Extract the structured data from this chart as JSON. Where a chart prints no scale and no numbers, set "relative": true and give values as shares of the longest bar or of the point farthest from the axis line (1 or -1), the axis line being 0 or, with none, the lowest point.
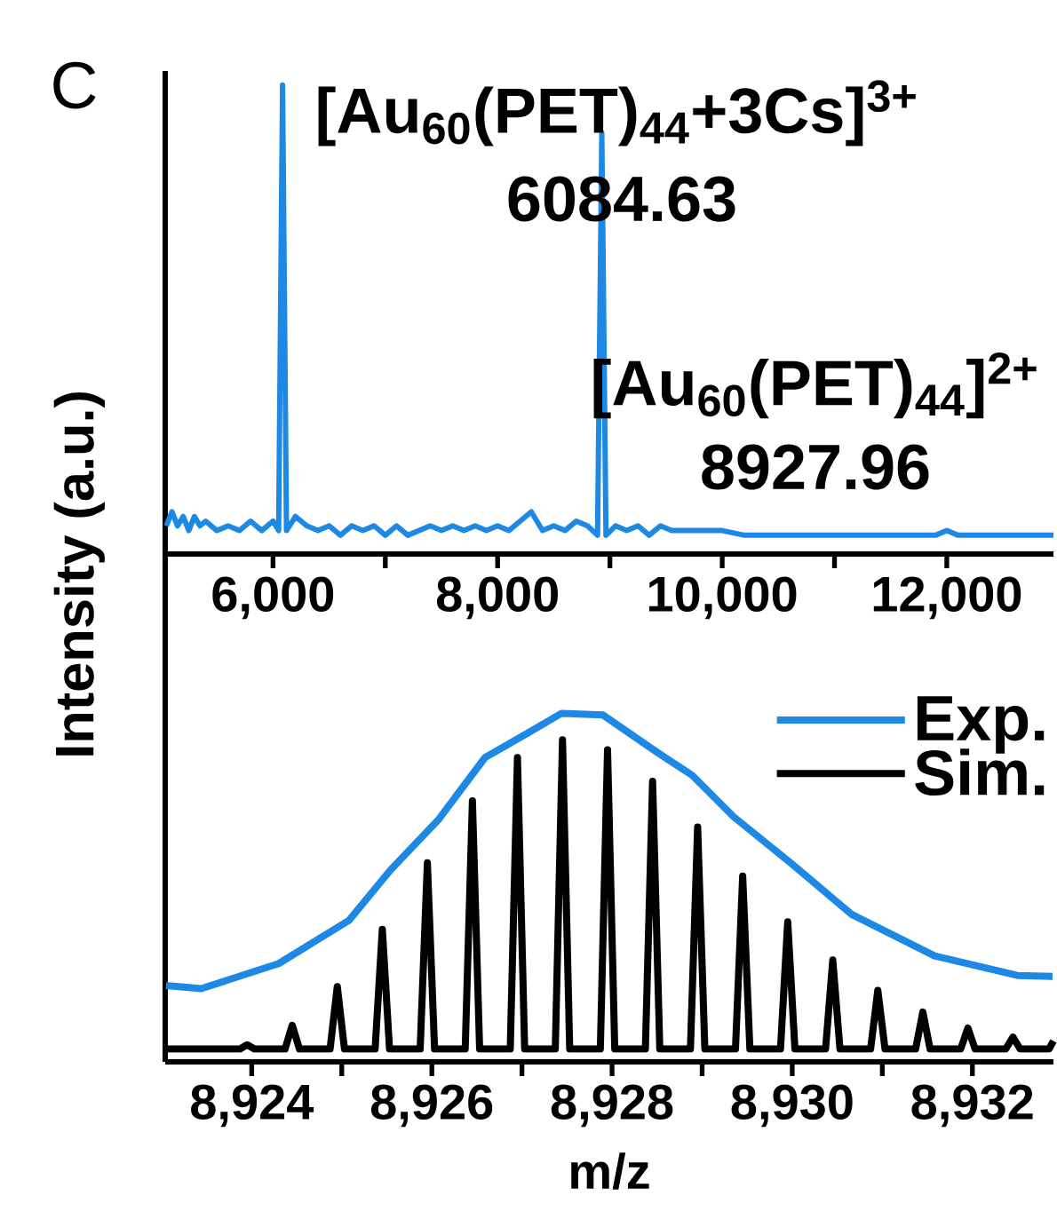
{
  "chart_data": [
    {
      "type": "line",
      "relative": true,
      "xlim": [
        5040,
        12950
      ],
      "xticks": [
        {
          "value": 6000,
          "label": "6,000"
        },
        {
          "value": 7000,
          "label": null
        },
        {
          "value": 8000,
          "label": "8,000"
        },
        {
          "value": 9000,
          "label": null
        },
        {
          "value": 10000,
          "label": "10,000"
        },
        {
          "value": 11000,
          "label": null
        },
        {
          "value": 12000,
          "label": "12,000"
        }
      ],
      "series": [
        {
          "color": "#1e88e5",
          "x": [
            5050,
            5100,
            5150,
            5200,
            5250,
            5300,
            5350,
            5400,
            5500,
            5600,
            5700,
            5800,
            5900,
            6000,
            6050,
            6085,
            6120,
            6200,
            6300,
            6400,
            6500,
            6600,
            6700,
            6800,
            6900,
            7000,
            7100,
            7200,
            7300,
            7400,
            7500,
            7600,
            7700,
            7800,
            7900,
            8000,
            8100,
            8200,
            8300,
            8400,
            8500,
            8600,
            8700,
            8800,
            8890,
            8928,
            8965,
            9050,
            9150,
            9250,
            9350,
            9450,
            9550,
            9700,
            9900,
            10000,
            10200,
            10500,
            11000,
            11500,
            11900,
            12000,
            12100,
            12500,
            12950
          ],
          "values": [
            0.06,
            0.09,
            0.06,
            0.08,
            0.05,
            0.08,
            0.06,
            0.07,
            0.05,
            0.06,
            0.05,
            0.07,
            0.05,
            0.07,
            0.05,
            1.0,
            0.05,
            0.08,
            0.06,
            0.05,
            0.06,
            0.04,
            0.06,
            0.05,
            0.06,
            0.04,
            0.06,
            0.04,
            0.05,
            0.06,
            0.05,
            0.06,
            0.05,
            0.06,
            0.05,
            0.06,
            0.05,
            0.07,
            0.09,
            0.05,
            0.06,
            0.05,
            0.07,
            0.06,
            0.04,
            0.898,
            0.04,
            0.06,
            0.05,
            0.06,
            0.04,
            0.06,
            0.05,
            0.05,
            0.05,
            0.05,
            0.04,
            0.04,
            0.04,
            0.04,
            0.04,
            0.05,
            0.04,
            0.04,
            0.04
          ]
        }
      ],
      "annotations": [
        "[Au$_{60}$(PET)$_{44}$+3Cs]$^{3+}$",
        "6084.63",
        "[Au$_{60}$(PET)$_{44}$]$^{2+}$",
        "8927.96",
        "C"
      ]
    },
    {
      "type": "line",
      "relative": true,
      "xlim": [
        8923.04,
        8932.9
      ],
      "xlabel": "m/z",
      "ylabel": "Intensity (a.u.)",
      "legend": "top right",
      "xticks": [
        {
          "value": 8924,
          "label": "8,924"
        },
        {
          "value": 8925,
          "label": null
        },
        {
          "value": 8926,
          "label": "8,926"
        },
        {
          "value": 8927,
          "label": null
        },
        {
          "value": 8928,
          "label": "8,928"
        },
        {
          "value": 8929,
          "label": null
        },
        {
          "value": 8930,
          "label": "8,930"
        },
        {
          "value": 8931,
          "label": null
        },
        {
          "value": 8932,
          "label": "8,932"
        }
      ],
      "series": [
        {
          "name": "Exp.",
          "color": "#1e88e5",
          "x": [
            8923.05,
            8923.44,
            8924.3,
            8925.08,
            8925.54,
            8926.07,
            8926.59,
            8927.05,
            8927.44,
            8927.9,
            8928.49,
            8928.89,
            8929.35,
            8930.0,
            8930.66,
            8931.58,
            8932.5,
            8932.89
          ],
          "values": [
            0.219,
            0.21,
            0.282,
            0.406,
            0.55,
            0.694,
            0.873,
            0.941,
            1.0,
            0.995,
            0.89,
            0.822,
            0.703,
            0.567,
            0.423,
            0.304,
            0.248,
            0.245
          ]
        },
        {
          "name": "Sim.",
          "color": "#000000",
          "x": [
            8923.04,
            8923.87,
            8923.95,
            8924.03,
            8924.37,
            8924.45,
            8924.53,
            8924.87,
            8924.95,
            8925.03,
            8925.37,
            8925.45,
            8925.53,
            8925.87,
            8925.95,
            8926.03,
            8926.37,
            8926.45,
            8926.53,
            8926.87,
            8926.95,
            8927.03,
            8927.37,
            8927.45,
            8927.53,
            8927.87,
            8927.95,
            8928.03,
            8928.37,
            8928.45,
            8928.53,
            8928.87,
            8928.95,
            8929.03,
            8929.37,
            8929.45,
            8929.53,
            8929.87,
            8929.95,
            8930.03,
            8930.37,
            8930.45,
            8930.53,
            8930.87,
            8930.95,
            8931.03,
            8931.37,
            8931.45,
            8931.53,
            8931.87,
            8931.95,
            8932.03,
            8932.37,
            8932.45,
            8932.53,
            8932.85,
            8932.9
          ],
          "values": [
            0.037,
            0.037,
            0.049,
            0.037,
            0.037,
            0.105,
            0.037,
            0.037,
            0.216,
            0.037,
            0.037,
            0.38,
            0.037,
            0.037,
            0.571,
            0.037,
            0.037,
            0.749,
            0.037,
            0.037,
            0.873,
            0.037,
            0.037,
            0.924,
            0.037,
            0.037,
            0.895,
            0.037,
            0.037,
            0.805,
            0.037,
            0.037,
            0.674,
            0.037,
            0.037,
            0.533,
            0.037,
            0.037,
            0.402,
            0.037,
            0.037,
            0.292,
            0.037,
            0.037,
            0.205,
            0.037,
            0.037,
            0.143,
            0.037,
            0.037,
            0.097,
            0.037,
            0.037,
            0.071,
            0.037,
            0.037,
            0.06
          ]
        }
      ]
    }
  ]
}
